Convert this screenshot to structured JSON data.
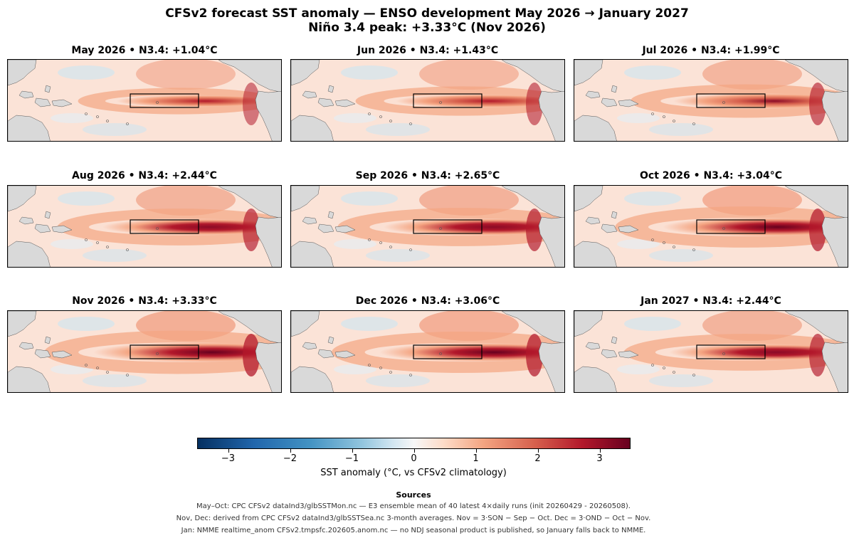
{
  "title_line1": "CFSv2 forecast SST anomaly — ENSO development May 2026 → January 2027",
  "title_line2": "Niño 3.4 peak: +3.33°C (Nov 2026)",
  "panels": [
    {
      "label": "May 2026  •  N3.4: +1.04°C",
      "n34": 1.04
    },
    {
      "label": "Jun 2026  •  N3.4: +1.43°C",
      "n34": 1.43
    },
    {
      "label": "Jul 2026  •  N3.4: +1.99°C",
      "n34": 1.99
    },
    {
      "label": "Aug 2026  •  N3.4: +2.44°C",
      "n34": 2.44
    },
    {
      "label": "Sep 2026  •  N3.4: +2.65°C",
      "n34": 2.65
    },
    {
      "label": "Oct 2026  •  N3.4: +3.04°C",
      "n34": 3.04
    },
    {
      "label": "Nov 2026  •  N3.4: +3.33°C",
      "n34": 3.33
    },
    {
      "label": "Dec 2026  •  N3.4: +3.06°C",
      "n34": 3.06
    },
    {
      "label": "Jan 2027  •  N3.4: +2.44°C",
      "n34": 2.44
    }
  ],
  "colorbar": {
    "label": "SST anomaly (°C, vs CFSv2 climatology)",
    "range": [
      -3.5,
      3.5
    ],
    "ticks": [
      {
        "value": -3,
        "label": "−3"
      },
      {
        "value": -2,
        "label": "−2"
      },
      {
        "value": -1,
        "label": "−1"
      },
      {
        "value": 0,
        "label": "0"
      },
      {
        "value": 1,
        "label": "1"
      },
      {
        "value": 2,
        "label": "2"
      },
      {
        "value": 3,
        "label": "3"
      }
    ],
    "colormap": [
      "#053061",
      "#2166ac",
      "#4393c3",
      "#92c5de",
      "#d1e5f0",
      "#f7f7f7",
      "#fddbc7",
      "#f4a582",
      "#d6604d",
      "#b2182b",
      "#67001f"
    ]
  },
  "sources": {
    "heading": "Sources",
    "lines": [
      "May–Oct: CPC CFSv2 dataInd3/glbSSTMon.nc — E3 ensemble mean of 40 latest 4×daily runs (init 20260429 - 20260508).",
      "Nov, Dec: derived from CPC CFSv2 dataInd3/glbSSTSea.nc 3-month averages.   Nov = 3·SON − Sep − Oct.   Dec = 3·OND − Oct − Nov.",
      "Jan: NMME realtime_anom CFSv2.tmpsfc.202605.anom.nc — no NDJ seasonal product is published, so January falls back to NMME."
    ]
  },
  "land_color": "#d9d9d9"
}
